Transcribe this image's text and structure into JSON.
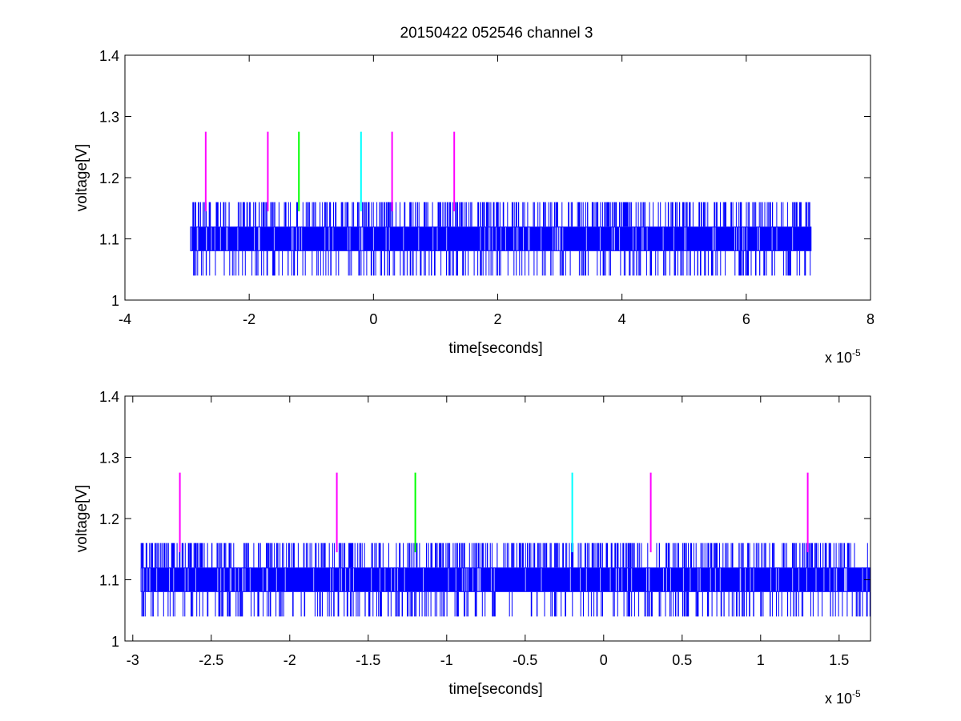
{
  "chart_data": [
    {
      "type": "line",
      "title": "20150422 052546 channel 3",
      "xlabel": "time[seconds]",
      "ylabel": "voltage[V]",
      "x_multiplier": {
        "base": "x 10",
        "exponent": "-5"
      },
      "xlim": [
        -4,
        8
      ],
      "ylim": [
        1,
        1.4
      ],
      "x_ticks": [
        {
          "v": -4,
          "label": "-4"
        },
        {
          "v": -2,
          "label": "-2"
        },
        {
          "v": 0,
          "label": "0"
        },
        {
          "v": 2,
          "label": "2"
        },
        {
          "v": 4,
          "label": "4"
        },
        {
          "v": 6,
          "label": "6"
        },
        {
          "v": 8,
          "label": "8"
        }
      ],
      "y_ticks": [
        {
          "v": 1,
          "label": "1"
        },
        {
          "v": 1.1,
          "label": "1.1"
        },
        {
          "v": 1.2,
          "label": "1.2"
        },
        {
          "v": 1.3,
          "label": "1.3"
        },
        {
          "v": 1.4,
          "label": "1.4"
        }
      ],
      "signal": {
        "name": "voltage",
        "color": "#0000ff",
        "x_range": [
          -2.95,
          7.05
        ],
        "baseline_band": [
          1.08,
          1.12
        ],
        "spike_high": 1.16,
        "spike_low": 1.04
      },
      "markers": [
        {
          "x": -2.7,
          "color": "#ff00ff",
          "y_range": [
            1.145,
            1.275
          ]
        },
        {
          "x": -1.7,
          "color": "#ff00ff",
          "y_range": [
            1.145,
            1.275
          ]
        },
        {
          "x": -1.2,
          "color": "#00ff00",
          "y_range": [
            1.145,
            1.275
          ]
        },
        {
          "x": -0.2,
          "color": "#00ffff",
          "y_range": [
            1.145,
            1.275
          ]
        },
        {
          "x": 0.3,
          "color": "#ff00ff",
          "y_range": [
            1.145,
            1.275
          ]
        },
        {
          "x": 1.3,
          "color": "#ff00ff",
          "y_range": [
            1.145,
            1.275
          ]
        }
      ]
    },
    {
      "type": "line",
      "title": "",
      "xlabel": "time[seconds]",
      "ylabel": "voltage[V]",
      "x_multiplier": {
        "base": "x 10",
        "exponent": "-5"
      },
      "xlim": [
        -3.05,
        1.7
      ],
      "ylim": [
        1,
        1.4
      ],
      "x_ticks": [
        {
          "v": -3,
          "label": "-3"
        },
        {
          "v": -2.5,
          "label": "-2.5"
        },
        {
          "v": -2,
          "label": "-2"
        },
        {
          "v": -1.5,
          "label": "-1.5"
        },
        {
          "v": -1,
          "label": "-1"
        },
        {
          "v": -0.5,
          "label": "-0.5"
        },
        {
          "v": 0,
          "label": "0"
        },
        {
          "v": 0.5,
          "label": "0.5"
        },
        {
          "v": 1,
          "label": "1"
        },
        {
          "v": 1.5,
          "label": "1.5"
        }
      ],
      "y_ticks": [
        {
          "v": 1,
          "label": "1"
        },
        {
          "v": 1.1,
          "label": "1.1"
        },
        {
          "v": 1.2,
          "label": "1.2"
        },
        {
          "v": 1.3,
          "label": "1.3"
        },
        {
          "v": 1.4,
          "label": "1.4"
        }
      ],
      "signal": {
        "name": "voltage",
        "color": "#0000ff",
        "x_range": [
          -2.95,
          1.7
        ],
        "baseline_band": [
          1.08,
          1.12
        ],
        "spike_high": 1.16,
        "spike_low": 1.04
      },
      "markers": [
        {
          "x": -2.7,
          "color": "#ff00ff",
          "y_range": [
            1.145,
            1.275
          ]
        },
        {
          "x": -1.7,
          "color": "#ff00ff",
          "y_range": [
            1.145,
            1.275
          ]
        },
        {
          "x": -1.2,
          "color": "#00ff00",
          "y_range": [
            1.145,
            1.275
          ]
        },
        {
          "x": -0.2,
          "color": "#00ffff",
          "y_range": [
            1.145,
            1.275
          ]
        },
        {
          "x": 0.3,
          "color": "#ff00ff",
          "y_range": [
            1.145,
            1.275
          ]
        },
        {
          "x": 1.3,
          "color": "#ff00ff",
          "y_range": [
            1.145,
            1.275
          ]
        }
      ]
    }
  ]
}
